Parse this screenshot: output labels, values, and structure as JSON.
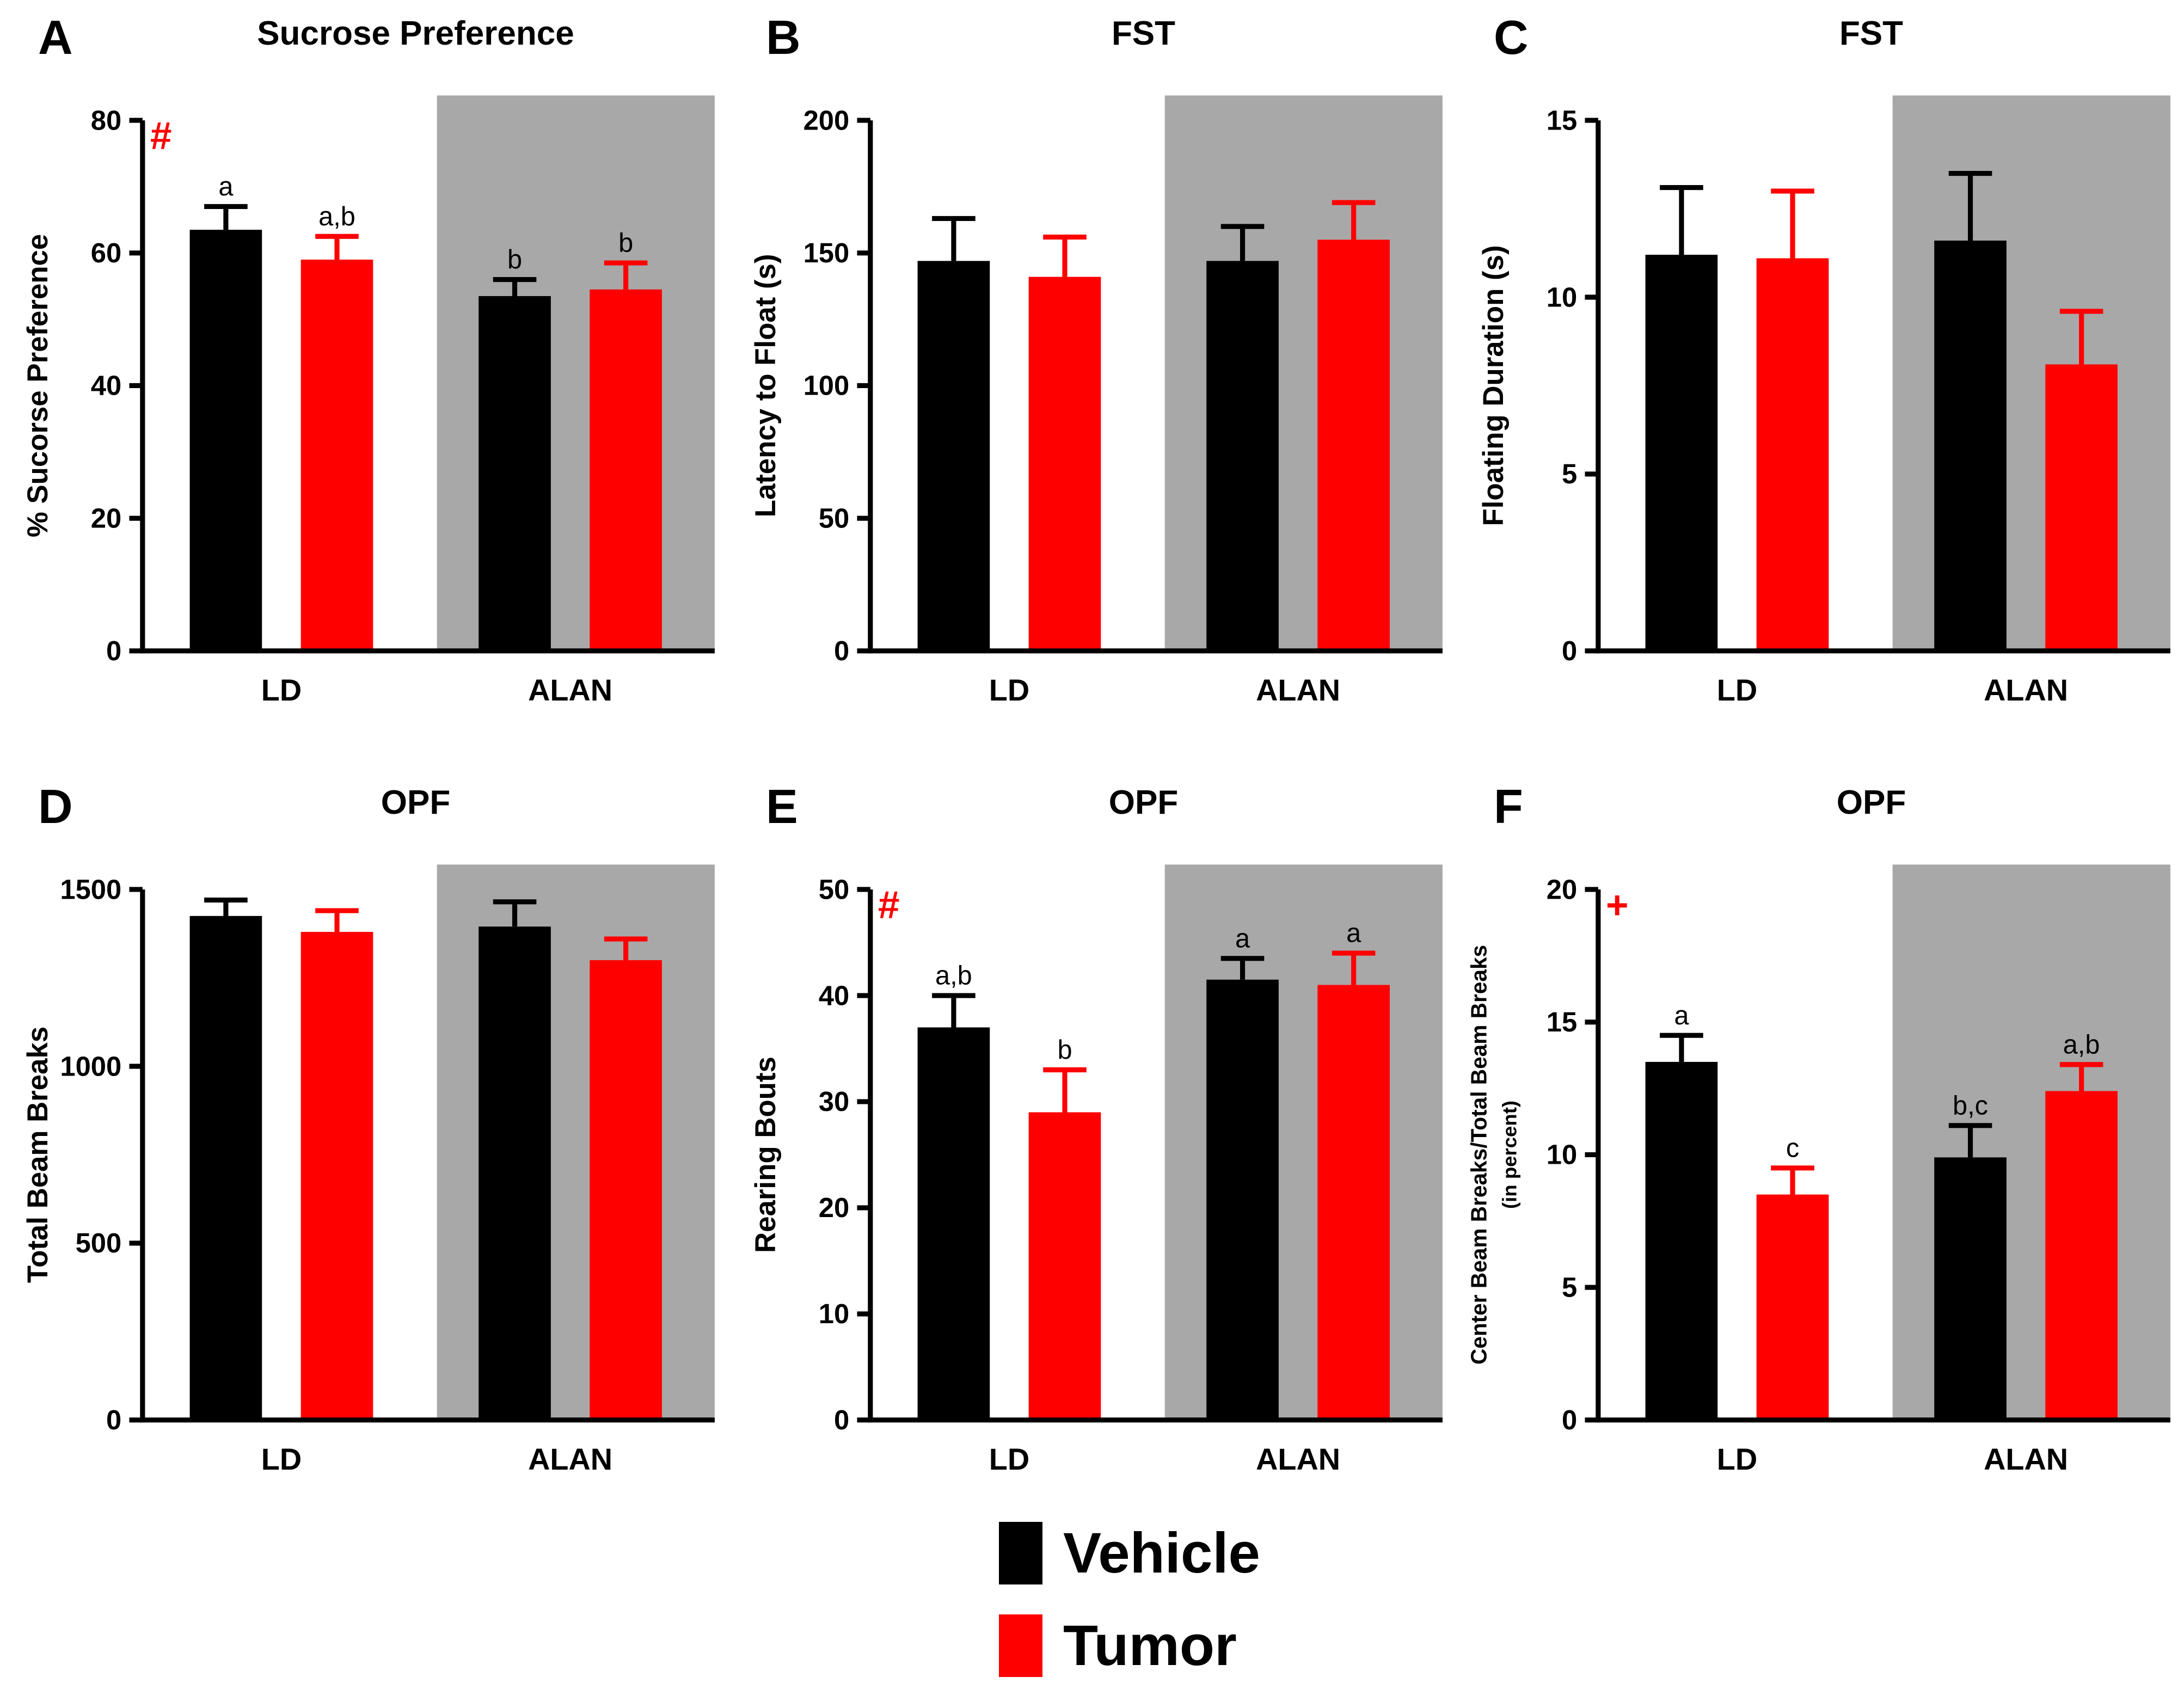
{
  "colors": {
    "vehicle": "#000000",
    "tumor": "#ff0000",
    "alan_shade": "#a8a8a8",
    "marker": "#ff0000",
    "axis": "#000000",
    "sig_label": "#000000"
  },
  "legend": {
    "items": [
      {
        "label": "Vehicle",
        "color": "#000000"
      },
      {
        "label": "Tumor",
        "color": "#ff0000"
      }
    ]
  },
  "chart_data": [
    {
      "panel": "A",
      "type": "bar",
      "title": "Sucrose Preference",
      "marker": "#",
      "ylabel_lines": [
        "% Sucorse Preference"
      ],
      "ylim": [
        0,
        80
      ],
      "yticks": [
        0,
        20,
        40,
        60,
        80
      ],
      "categories": [
        "LD",
        "ALAN"
      ],
      "shaded_category": "ALAN",
      "series": [
        {
          "name": "Vehicle",
          "color": "#000000",
          "values": [
            63.5,
            53.5
          ],
          "errors": [
            3.5,
            2.5
          ],
          "sig": [
            "a",
            "b"
          ]
        },
        {
          "name": "Tumor",
          "color": "#ff0000",
          "values": [
            59.0,
            54.5
          ],
          "errors": [
            3.5,
            4.0
          ],
          "sig": [
            "a,b",
            "b"
          ]
        }
      ]
    },
    {
      "panel": "B",
      "type": "bar",
      "title": "FST",
      "marker": "",
      "ylabel_lines": [
        "Latency to Float (s)"
      ],
      "ylim": [
        0,
        200
      ],
      "yticks": [
        0,
        50,
        100,
        150,
        200
      ],
      "categories": [
        "LD",
        "ALAN"
      ],
      "shaded_category": "ALAN",
      "series": [
        {
          "name": "Vehicle",
          "color": "#000000",
          "values": [
            147,
            147
          ],
          "errors": [
            16,
            13
          ],
          "sig": [
            null,
            null
          ]
        },
        {
          "name": "Tumor",
          "color": "#ff0000",
          "values": [
            141,
            155
          ],
          "errors": [
            15,
            14
          ],
          "sig": [
            null,
            null
          ]
        }
      ]
    },
    {
      "panel": "C",
      "type": "bar",
      "title": "FST",
      "marker": "",
      "ylabel_lines": [
        "Floating Duration (s)"
      ],
      "ylim": [
        0,
        15
      ],
      "yticks": [
        0,
        5,
        10,
        15
      ],
      "categories": [
        "LD",
        "ALAN"
      ],
      "shaded_category": "ALAN",
      "series": [
        {
          "name": "Vehicle",
          "color": "#000000",
          "values": [
            11.2,
            11.6
          ],
          "errors": [
            1.9,
            1.9
          ],
          "sig": [
            null,
            null
          ]
        },
        {
          "name": "Tumor",
          "color": "#ff0000",
          "values": [
            11.1,
            8.1
          ],
          "errors": [
            1.9,
            1.5
          ],
          "sig": [
            null,
            null
          ]
        }
      ]
    },
    {
      "panel": "D",
      "type": "bar",
      "title": "OPF",
      "marker": "",
      "ylabel_lines": [
        "Total Beam Breaks"
      ],
      "ylim": [
        0,
        1500
      ],
      "yticks": [
        0,
        500,
        1000,
        1500
      ],
      "categories": [
        "LD",
        "ALAN"
      ],
      "shaded_category": "ALAN",
      "series": [
        {
          "name": "Vehicle",
          "color": "#000000",
          "values": [
            1425,
            1395
          ],
          "errors": [
            45,
            70
          ],
          "sig": [
            null,
            null
          ]
        },
        {
          "name": "Tumor",
          "color": "#ff0000",
          "values": [
            1380,
            1300
          ],
          "errors": [
            60,
            60
          ],
          "sig": [
            null,
            null
          ]
        }
      ]
    },
    {
      "panel": "E",
      "type": "bar",
      "title": "OPF",
      "marker": "#",
      "ylabel_lines": [
        "Rearing Bouts"
      ],
      "ylim": [
        0,
        50
      ],
      "yticks": [
        0,
        10,
        20,
        30,
        40,
        50
      ],
      "categories": [
        "LD",
        "ALAN"
      ],
      "shaded_category": "ALAN",
      "series": [
        {
          "name": "Vehicle",
          "color": "#000000",
          "values": [
            37.0,
            41.5
          ],
          "errors": [
            3.0,
            2.0
          ],
          "sig": [
            "a,b",
            "a"
          ]
        },
        {
          "name": "Tumor",
          "color": "#ff0000",
          "values": [
            29.0,
            41.0
          ],
          "errors": [
            4.0,
            3.0
          ],
          "sig": [
            "b",
            "a"
          ]
        }
      ]
    },
    {
      "panel": "F",
      "type": "bar",
      "title": "OPF",
      "marker": "+",
      "ylabel_lines": [
        "Center Beam Breaks/Total  Beam Breaks",
        "(in percent)"
      ],
      "ylim": [
        0,
        20
      ],
      "yticks": [
        0,
        5,
        10,
        15,
        20
      ],
      "categories": [
        "LD",
        "ALAN"
      ],
      "shaded_category": "ALAN",
      "series": [
        {
          "name": "Vehicle",
          "color": "#000000",
          "values": [
            13.5,
            9.9
          ],
          "errors": [
            1.0,
            1.2
          ],
          "sig": [
            "a",
            "b,c"
          ]
        },
        {
          "name": "Tumor",
          "color": "#ff0000",
          "values": [
            8.5,
            12.4
          ],
          "errors": [
            1.0,
            1.0
          ],
          "sig": [
            "c",
            "a,b"
          ]
        }
      ]
    }
  ]
}
